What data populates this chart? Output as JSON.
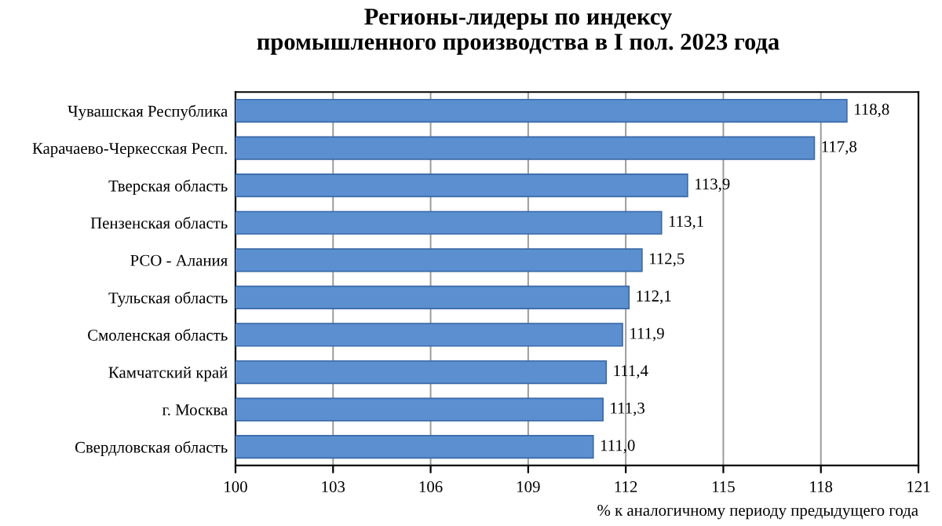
{
  "chart_data": {
    "type": "bar",
    "orientation": "horizontal",
    "title": "Регионы-лидеры по индексу\nпромышленного производства в I пол. 2023 года",
    "categories": [
      "Чувашская Республика",
      "Карачаево-Черкесская Респ.",
      "Тверская область",
      "Пензенская область",
      "РСО - Алания",
      "Тульская область",
      "Смоленская область",
      "Камчатский край",
      "г. Москва",
      "Свердловская область"
    ],
    "values": [
      118.8,
      117.8,
      113.9,
      113.1,
      112.5,
      112.1,
      111.9,
      111.4,
      111.3,
      111.0
    ],
    "value_labels": [
      "118,8",
      "117,8",
      "113,9",
      "113,1",
      "112,5",
      "112,1",
      "111,9",
      "111,4",
      "111,3",
      "111,0"
    ],
    "color": "#5b8fd0",
    "xlim": [
      100,
      121
    ],
    "xticks": [
      100,
      103,
      106,
      109,
      112,
      115,
      118,
      121
    ],
    "xlabel": "% к аналогичному периоду предыдущего года",
    "grid": "x"
  }
}
